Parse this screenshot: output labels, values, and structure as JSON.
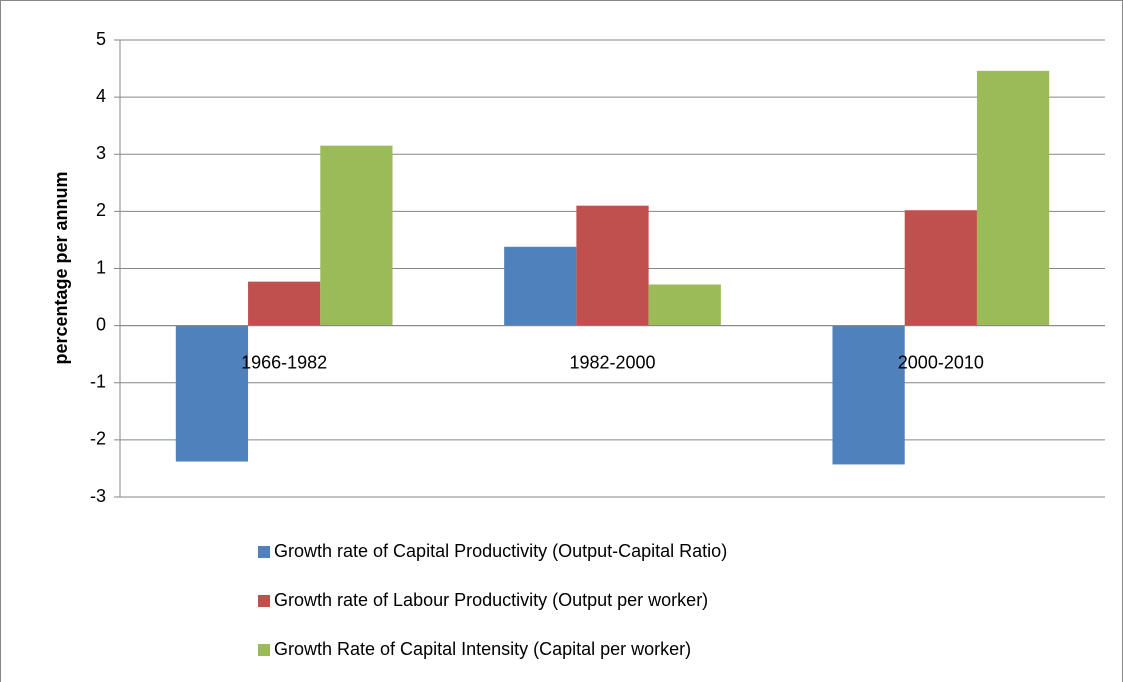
{
  "chart_data": {
    "type": "bar",
    "y_axis_label": "percentage per annum",
    "categories": [
      "1966-1982",
      "1982-2000",
      "2000-2010"
    ],
    "series": [
      {
        "name": "Growth rate of Capital Productivity (Output-Capital Ratio)",
        "color": "#4f81bd",
        "values": [
          -2.38,
          1.38,
          -2.43
        ]
      },
      {
        "name": "Growth rate of Labour Productivity (Output per worker)",
        "color": "#c0504d",
        "values": [
          0.77,
          2.1,
          2.02
        ]
      },
      {
        "name": "Growth Rate of Capital Intensity (Capital per worker)",
        "color": "#9bbb59",
        "values": [
          3.15,
          0.72,
          4.46
        ]
      }
    ],
    "ylim": [
      -3,
      5
    ],
    "yticks": [
      -3,
      -2,
      -1,
      0,
      1,
      2,
      3,
      4,
      5
    ],
    "grid": true,
    "legend": "bottom"
  }
}
